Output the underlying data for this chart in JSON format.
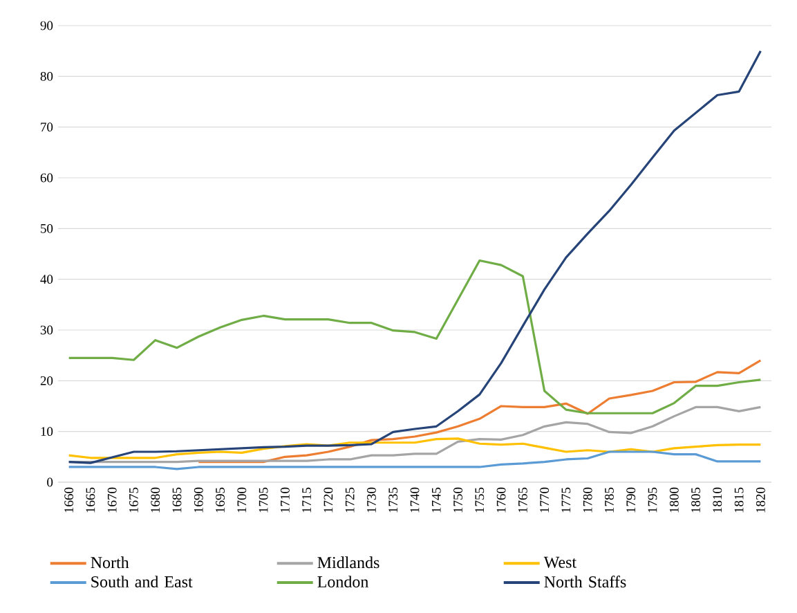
{
  "chart_data": {
    "type": "line",
    "categories": [
      "1660",
      "1665",
      "1670",
      "1675",
      "1680",
      "1685",
      "1690",
      "1695",
      "1700",
      "1705",
      "1710",
      "1715",
      "1720",
      "1725",
      "1730",
      "1735",
      "1740",
      "1745",
      "1750",
      "1755",
      "1760",
      "1765",
      "1770",
      "1775",
      "1780",
      "1785",
      "1790",
      "1795",
      "1800",
      "1805",
      "1810",
      "1815",
      "1820"
    ],
    "series": [
      {
        "name": "North",
        "color": "#ed7d31",
        "values": [
          null,
          null,
          null,
          null,
          null,
          null,
          4,
          4,
          4,
          4,
          5,
          5.3,
          6,
          7,
          8.3,
          8.5,
          9,
          9.8,
          11,
          12.5,
          15,
          14.8,
          14.8,
          15.5,
          13.5,
          16.5,
          17.2,
          18,
          19.7,
          19.8,
          21.7,
          21.5,
          24
        ]
      },
      {
        "name": "Midlands",
        "color": "#a5a5a5",
        "values": [
          4,
          4,
          4,
          4,
          4,
          4,
          4.2,
          4.2,
          4.2,
          4.2,
          4.2,
          4.2,
          4.5,
          4.5,
          5.3,
          5.3,
          5.6,
          5.6,
          8,
          8.5,
          8.4,
          9.3,
          11,
          11.8,
          11.5,
          9.9,
          9.7,
          11,
          13,
          14.8,
          14.8,
          14,
          14.8
        ]
      },
      {
        "name": "West",
        "color": "#ffc000",
        "values": [
          5.3,
          4.8,
          4.8,
          4.8,
          4.8,
          5.5,
          5.8,
          6,
          5.8,
          6.6,
          7.1,
          7.5,
          7.2,
          7.8,
          7.8,
          7.8,
          7.8,
          8.5,
          8.6,
          7.6,
          7.4,
          7.6,
          6.8,
          6,
          6.3,
          6,
          6.5,
          6,
          6.7,
          7,
          7.3,
          7.4,
          7.4
        ]
      },
      {
        "name": "South and East",
        "color": "#5b9bd5",
        "values": [
          3,
          3,
          3,
          3,
          3,
          2.6,
          3,
          3,
          3,
          3,
          3,
          3,
          3,
          3,
          3,
          3,
          3,
          3,
          3,
          3,
          3.5,
          3.7,
          4,
          4.5,
          4.7,
          6,
          6,
          6,
          5.5,
          5.5,
          4.1,
          4.1,
          4.1
        ]
      },
      {
        "name": "London",
        "color": "#70ad47",
        "values": [
          24.5,
          24.5,
          24.5,
          24.1,
          28,
          26.5,
          28.7,
          30.5,
          32,
          32.8,
          32.1,
          32.1,
          32.1,
          31.4,
          31.4,
          29.9,
          29.6,
          28.3,
          36,
          43.7,
          42.8,
          40.6,
          18,
          14.3,
          13.6,
          13.6,
          13.6,
          13.6,
          15.6,
          19,
          19,
          19.7,
          20.2
        ]
      },
      {
        "name": "North Staffs",
        "color": "#264478",
        "values": [
          4,
          3.8,
          4.9,
          6,
          6,
          6.1,
          6.3,
          6.5,
          6.7,
          6.9,
          7,
          7.2,
          7.2,
          7.3,
          7.5,
          9.9,
          10.5,
          11,
          14,
          17.3,
          23.5,
          30.8,
          38,
          44.3,
          49,
          53.5,
          58.6,
          64,
          69.3,
          72.8,
          76.3,
          77,
          85
        ]
      }
    ],
    "ylim": [
      0,
      90
    ],
    "yticks": [
      0,
      10,
      20,
      30,
      40,
      50,
      60,
      70,
      80,
      90
    ],
    "grid": "y",
    "legend": "bottom"
  }
}
